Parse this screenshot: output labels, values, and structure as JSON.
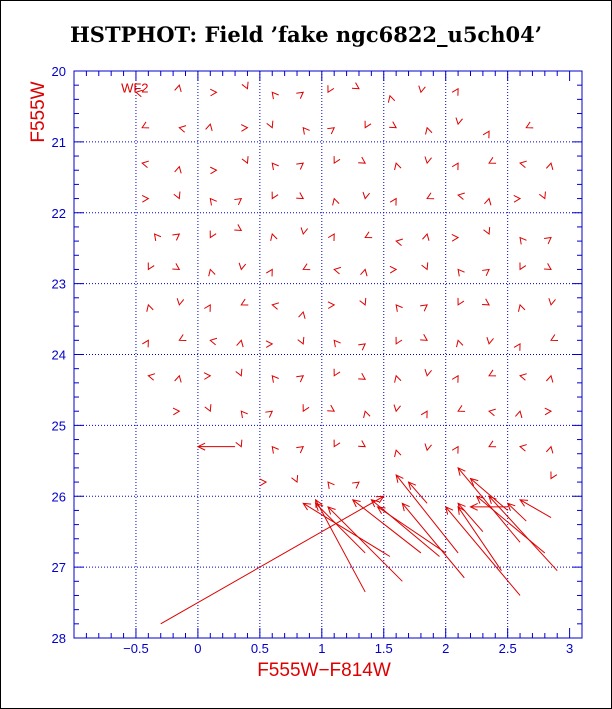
{
  "page": {
    "title": "HSTPHOT: Field ’fake ngc6822_u5ch04’"
  },
  "colors": {
    "axis": "#0000cc",
    "grid": "#0000cc",
    "vectors": "#dd0000",
    "labels": "#dd0000"
  },
  "chart_data": {
    "type": "vector-field",
    "title": "HSTPHOT: Field ’fake ngc6822_u5ch04’",
    "xlabel": "F555W−F814W",
    "ylabel": "F555W",
    "annotation": "WF2",
    "xlim": [
      -1.0,
      3.1
    ],
    "ylim": [
      28,
      20
    ],
    "y_inverted": true,
    "grid": true,
    "x_ticks": [
      -0.5,
      0,
      0.5,
      1,
      1.5,
      2,
      2.5,
      3
    ],
    "x_tick_labels": [
      "−0.5",
      "0",
      "0.5",
      "1",
      "1.5",
      "2",
      "2.5",
      "3"
    ],
    "y_ticks": [
      20,
      21,
      22,
      23,
      24,
      25,
      26,
      27,
      28
    ],
    "y_tick_labels": [
      "20",
      "21",
      "22",
      "23",
      "24",
      "25",
      "26",
      "27",
      "28"
    ],
    "x_gridlines": [
      -0.5,
      0,
      0.5,
      1,
      1.5,
      2,
      2.5
    ],
    "y_gridlines": [
      21,
      22,
      23,
      24,
      25,
      26,
      27
    ],
    "vectors": [
      {
        "x0": -0.3,
        "y0": 27.8,
        "x1": 1.5,
        "y1": 26.0
      },
      {
        "x0": 1.35,
        "y0": 27.35,
        "x1": 0.95,
        "y1": 26.05
      },
      {
        "x0": 1.65,
        "y0": 27.2,
        "x1": 1.05,
        "y1": 26.15
      },
      {
        "x0": 1.55,
        "y0": 26.85,
        "x1": 0.85,
        "y1": 26.1
      },
      {
        "x0": 1.35,
        "y0": 26.8,
        "x1": 0.95,
        "y1": 26.1
      },
      {
        "x0": 1.8,
        "y0": 26.8,
        "x1": 1.25,
        "y1": 26.05
      },
      {
        "x0": 1.95,
        "y0": 26.85,
        "x1": 1.4,
        "y1": 26.05
      },
      {
        "x0": 2.0,
        "y0": 26.8,
        "x1": 1.45,
        "y1": 26.15
      },
      {
        "x0": 2.15,
        "y0": 27.15,
        "x1": 1.65,
        "y1": 26.1
      },
      {
        "x0": 2.1,
        "y0": 26.8,
        "x1": 1.6,
        "y1": 25.7
      },
      {
        "x0": 1.85,
        "y0": 26.1,
        "x1": 1.7,
        "y1": 25.8
      },
      {
        "x0": 2.45,
        "y0": 27.05,
        "x1": 2.1,
        "y1": 26.15
      },
      {
        "x0": 2.6,
        "y0": 27.4,
        "x1": 2.0,
        "y1": 26.15
      },
      {
        "x0": 2.3,
        "y0": 26.5,
        "x1": 2.1,
        "y1": 26.1
      },
      {
        "x0": 2.6,
        "y0": 26.65,
        "x1": 2.1,
        "y1": 25.6
      },
      {
        "x0": 2.5,
        "y0": 26.2,
        "x1": 2.2,
        "y1": 25.75
      },
      {
        "x0": 2.8,
        "y0": 26.8,
        "x1": 2.25,
        "y1": 26.0
      },
      {
        "x0": 2.9,
        "y0": 27.05,
        "x1": 2.35,
        "y1": 26.0
      },
      {
        "x0": 2.65,
        "y0": 26.35,
        "x1": 2.5,
        "y1": 26.1
      },
      {
        "x0": 2.85,
        "y0": 26.3,
        "x1": 2.6,
        "y1": 26.05
      },
      {
        "x0": 2.5,
        "y0": 26.15,
        "x1": 2.2,
        "y1": 26.15
      }
    ],
    "points": [
      {
        "x": -0.5,
        "y": 20.3
      },
      {
        "x": -0.15,
        "y": 20.2
      },
      {
        "x": 0.15,
        "y": 20.3
      },
      {
        "x": 0.4,
        "y": 20.25
      },
      {
        "x": 0.6,
        "y": 20.3
      },
      {
        "x": 0.85,
        "y": 20.3
      },
      {
        "x": 1.05,
        "y": 20.3
      },
      {
        "x": 1.3,
        "y": 20.25
      },
      {
        "x": 1.55,
        "y": 20.35
      },
      {
        "x": 1.8,
        "y": 20.3
      },
      {
        "x": 2.1,
        "y": 20.25
      },
      {
        "x": -0.45,
        "y": 20.8
      },
      {
        "x": -0.15,
        "y": 20.8
      },
      {
        "x": 0.1,
        "y": 20.75
      },
      {
        "x": 0.4,
        "y": 20.8
      },
      {
        "x": 0.6,
        "y": 20.8
      },
      {
        "x": 0.85,
        "y": 20.8
      },
      {
        "x": 1.1,
        "y": 20.8
      },
      {
        "x": 1.35,
        "y": 20.8
      },
      {
        "x": 1.6,
        "y": 20.8
      },
      {
        "x": 1.85,
        "y": 20.8
      },
      {
        "x": 2.1,
        "y": 20.75
      },
      {
        "x": 2.35,
        "y": 20.85
      },
      {
        "x": 2.65,
        "y": 20.8
      },
      {
        "x": -0.45,
        "y": 21.3
      },
      {
        "x": -0.15,
        "y": 21.35
      },
      {
        "x": 0.15,
        "y": 21.4
      },
      {
        "x": 0.4,
        "y": 21.3
      },
      {
        "x": 0.6,
        "y": 21.3
      },
      {
        "x": 0.85,
        "y": 21.3
      },
      {
        "x": 1.1,
        "y": 21.3
      },
      {
        "x": 1.35,
        "y": 21.3
      },
      {
        "x": 1.6,
        "y": 21.3
      },
      {
        "x": 1.85,
        "y": 21.3
      },
      {
        "x": 2.1,
        "y": 21.3
      },
      {
        "x": 2.35,
        "y": 21.3
      },
      {
        "x": 2.6,
        "y": 21.3
      },
      {
        "x": 2.85,
        "y": 21.3
      },
      {
        "x": -0.4,
        "y": 21.8
      },
      {
        "x": -0.15,
        "y": 21.8
      },
      {
        "x": 0.1,
        "y": 21.8
      },
      {
        "x": 0.35,
        "y": 21.8
      },
      {
        "x": 0.6,
        "y": 21.8
      },
      {
        "x": 0.85,
        "y": 21.8
      },
      {
        "x": 1.1,
        "y": 21.8
      },
      {
        "x": 1.35,
        "y": 21.8
      },
      {
        "x": 1.6,
        "y": 21.8
      },
      {
        "x": 1.85,
        "y": 21.8
      },
      {
        "x": 2.1,
        "y": 21.75
      },
      {
        "x": 2.35,
        "y": 21.8
      },
      {
        "x": 2.6,
        "y": 21.8
      },
      {
        "x": 2.8,
        "y": 21.8
      },
      {
        "x": -0.35,
        "y": 22.3
      },
      {
        "x": -0.15,
        "y": 22.3
      },
      {
        "x": 0.1,
        "y": 22.35
      },
      {
        "x": 0.35,
        "y": 22.25
      },
      {
        "x": 0.6,
        "y": 22.3
      },
      {
        "x": 0.85,
        "y": 22.3
      },
      {
        "x": 1.1,
        "y": 22.3
      },
      {
        "x": 1.35,
        "y": 22.35
      },
      {
        "x": 1.6,
        "y": 22.4
      },
      {
        "x": 1.85,
        "y": 22.3
      },
      {
        "x": 2.1,
        "y": 22.35
      },
      {
        "x": 2.35,
        "y": 22.3
      },
      {
        "x": 2.6,
        "y": 22.35
      },
      {
        "x": 2.85,
        "y": 22.35
      },
      {
        "x": -0.4,
        "y": 22.8
      },
      {
        "x": -0.15,
        "y": 22.8
      },
      {
        "x": 0.1,
        "y": 22.8
      },
      {
        "x": 0.35,
        "y": 22.8
      },
      {
        "x": 0.6,
        "y": 22.8
      },
      {
        "x": 0.85,
        "y": 22.8
      },
      {
        "x": 1.1,
        "y": 22.8
      },
      {
        "x": 1.35,
        "y": 22.8
      },
      {
        "x": 1.6,
        "y": 22.8
      },
      {
        "x": 1.85,
        "y": 22.8
      },
      {
        "x": 2.1,
        "y": 22.8
      },
      {
        "x": 2.35,
        "y": 22.8
      },
      {
        "x": 2.6,
        "y": 22.8
      },
      {
        "x": 2.85,
        "y": 22.8
      },
      {
        "x": -0.4,
        "y": 23.3
      },
      {
        "x": -0.15,
        "y": 23.3
      },
      {
        "x": 0.1,
        "y": 23.3
      },
      {
        "x": 0.35,
        "y": 23.3
      },
      {
        "x": 0.6,
        "y": 23.3
      },
      {
        "x": 0.85,
        "y": 23.4
      },
      {
        "x": 1.1,
        "y": 23.3
      },
      {
        "x": 1.35,
        "y": 23.3
      },
      {
        "x": 1.6,
        "y": 23.3
      },
      {
        "x": 1.85,
        "y": 23.3
      },
      {
        "x": 2.1,
        "y": 23.3
      },
      {
        "x": 2.35,
        "y": 23.3
      },
      {
        "x": 2.6,
        "y": 23.3
      },
      {
        "x": 2.85,
        "y": 23.3
      },
      {
        "x": -0.4,
        "y": 23.8
      },
      {
        "x": -0.15,
        "y": 23.8
      },
      {
        "x": 0.1,
        "y": 23.8
      },
      {
        "x": 0.35,
        "y": 23.8
      },
      {
        "x": 0.6,
        "y": 23.85
      },
      {
        "x": 0.85,
        "y": 23.85
      },
      {
        "x": 1.1,
        "y": 23.8
      },
      {
        "x": 1.35,
        "y": 23.85
      },
      {
        "x": 1.6,
        "y": 23.85
      },
      {
        "x": 1.85,
        "y": 23.8
      },
      {
        "x": 2.1,
        "y": 23.8
      },
      {
        "x": 2.35,
        "y": 23.85
      },
      {
        "x": 2.6,
        "y": 23.85
      },
      {
        "x": 2.85,
        "y": 23.8
      },
      {
        "x": -0.4,
        "y": 24.3
      },
      {
        "x": -0.15,
        "y": 24.3
      },
      {
        "x": 0.1,
        "y": 24.3
      },
      {
        "x": 0.35,
        "y": 24.3
      },
      {
        "x": 0.6,
        "y": 24.3
      },
      {
        "x": 0.85,
        "y": 24.3
      },
      {
        "x": 1.1,
        "y": 24.3
      },
      {
        "x": 1.35,
        "y": 24.35
      },
      {
        "x": 1.6,
        "y": 24.3
      },
      {
        "x": 1.85,
        "y": 24.3
      },
      {
        "x": 2.1,
        "y": 24.3
      },
      {
        "x": 2.35,
        "y": 24.3
      },
      {
        "x": 2.6,
        "y": 24.3
      },
      {
        "x": 2.85,
        "y": 24.3
      },
      {
        "x": -0.15,
        "y": 24.8
      },
      {
        "x": 0.1,
        "y": 24.8
      },
      {
        "x": 0.35,
        "y": 24.8
      },
      {
        "x": 0.6,
        "y": 24.8
      },
      {
        "x": 0.85,
        "y": 24.8
      },
      {
        "x": 1.1,
        "y": 24.8
      },
      {
        "x": 1.35,
        "y": 24.8
      },
      {
        "x": 1.6,
        "y": 24.8
      },
      {
        "x": 1.85,
        "y": 24.8
      },
      {
        "x": 2.1,
        "y": 24.8
      },
      {
        "x": 2.35,
        "y": 24.8
      },
      {
        "x": 2.6,
        "y": 24.8
      },
      {
        "x": 2.85,
        "y": 24.8
      },
      {
        "x": 0.35,
        "y": 25.3
      },
      {
        "x": 0.6,
        "y": 25.3
      },
      {
        "x": 0.85,
        "y": 25.3
      },
      {
        "x": 1.1,
        "y": 25.3
      },
      {
        "x": 1.35,
        "y": 25.3
      },
      {
        "x": 1.6,
        "y": 25.35
      },
      {
        "x": 1.85,
        "y": 25.35
      },
      {
        "x": 2.1,
        "y": 25.3
      },
      {
        "x": 2.35,
        "y": 25.3
      },
      {
        "x": 2.6,
        "y": 25.3
      },
      {
        "x": 2.85,
        "y": 25.3
      },
      {
        "x": 0.55,
        "y": 25.8
      },
      {
        "x": 0.8,
        "y": 25.8
      },
      {
        "x": 1.05,
        "y": 25.8
      },
      {
        "x": 1.3,
        "y": 25.8
      },
      {
        "x": 2.85,
        "y": 25.75
      }
    ],
    "long_arrow": {
      "x0": 0.3,
      "y0": 25.3,
      "x1": 0.0,
      "y1": 25.3
    }
  }
}
